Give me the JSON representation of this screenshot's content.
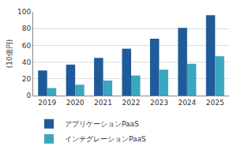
{
  "chart_data": {
    "type": "bar",
    "y_label": "(10億円)",
    "categories": [
      "2019",
      "2020",
      "2021",
      "2022",
      "2023",
      "2024",
      "2025"
    ],
    "series": [
      {
        "name": "アプリケーションPaaS",
        "color": "#1f5b98",
        "values": [
          30,
          37,
          45,
          56,
          68,
          81,
          96
        ]
      },
      {
        "name": "インテグレーションPaaS",
        "color": "#3ba6c0",
        "values": [
          9,
          13,
          18,
          24,
          31,
          38,
          47
        ]
      }
    ],
    "ylim": [
      0,
      100
    ],
    "yticks": [
      0,
      20,
      40,
      60,
      80,
      100
    ],
    "grid": true,
    "legend": "bottom"
  }
}
